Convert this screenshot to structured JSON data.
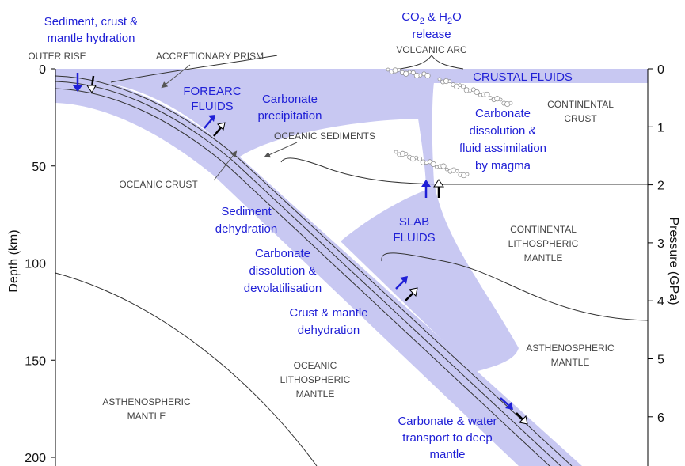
{
  "labels": {
    "sediment_hydration": [
      "Sediment, crust &",
      "mantle hydration"
    ],
    "co2_h2o": [
      "CO",
      "2",
      " & H",
      "2",
      "O"
    ],
    "release": "release",
    "volcanic_arc": "VOLCANIC ARC",
    "outer_rise": "OUTER RISE",
    "accretionary_prism": "ACCRETIONARY PRISM",
    "crustal_fluids": "CRUSTAL FLUIDS",
    "forearc_fluids": [
      "FOREARC",
      "FLUIDS"
    ],
    "carbonate_precipitation": [
      "Carbonate",
      "precipitation"
    ],
    "continental_crust": [
      "CONTINENTAL",
      "CRUST"
    ],
    "carbonate_dissolution_assimilation": [
      "Carbonate",
      "dissolution &",
      "fluid assimilation",
      "by magma"
    ],
    "oceanic_sediments": "OCEANIC SEDIMENTS",
    "oceanic_crust": "OCEANIC CRUST",
    "sediment_dehydration": [
      "Sediment",
      "dehydration"
    ],
    "slab_fluids": [
      "SLAB",
      "FLUIDS"
    ],
    "continental_lithospheric_mantle": [
      "CONTINENTAL",
      "LITHOSPHERIC",
      "MANTLE"
    ],
    "carbonate_devolatilisation": [
      "Carbonate",
      "dissolution &",
      "devolatilisation"
    ],
    "crust_mantle_dehydration": [
      "Crust & mantle",
      "dehydration"
    ],
    "asthenospheric_mantle_right": [
      "ASTHENOSPHERIC",
      "MANTLE"
    ],
    "oceanic_lithospheric_mantle": [
      "OCEANIC",
      "LITHOSPHERIC",
      "MANTLE"
    ],
    "asthenospheric_mantle_left": [
      "ASTHENOSPHERIC",
      "MANTLE"
    ],
    "carbonate_water_transport": [
      "Carbonate & water",
      "transport to deep",
      "mantle"
    ]
  },
  "depth_axis": {
    "label": "Depth (km)",
    "ticks": [
      0,
      50,
      100,
      150,
      200
    ]
  },
  "pressure_axis": {
    "label": "Pressure (GPa)",
    "ticks": [
      0,
      1,
      2,
      3,
      4,
      5,
      6
    ]
  }
}
